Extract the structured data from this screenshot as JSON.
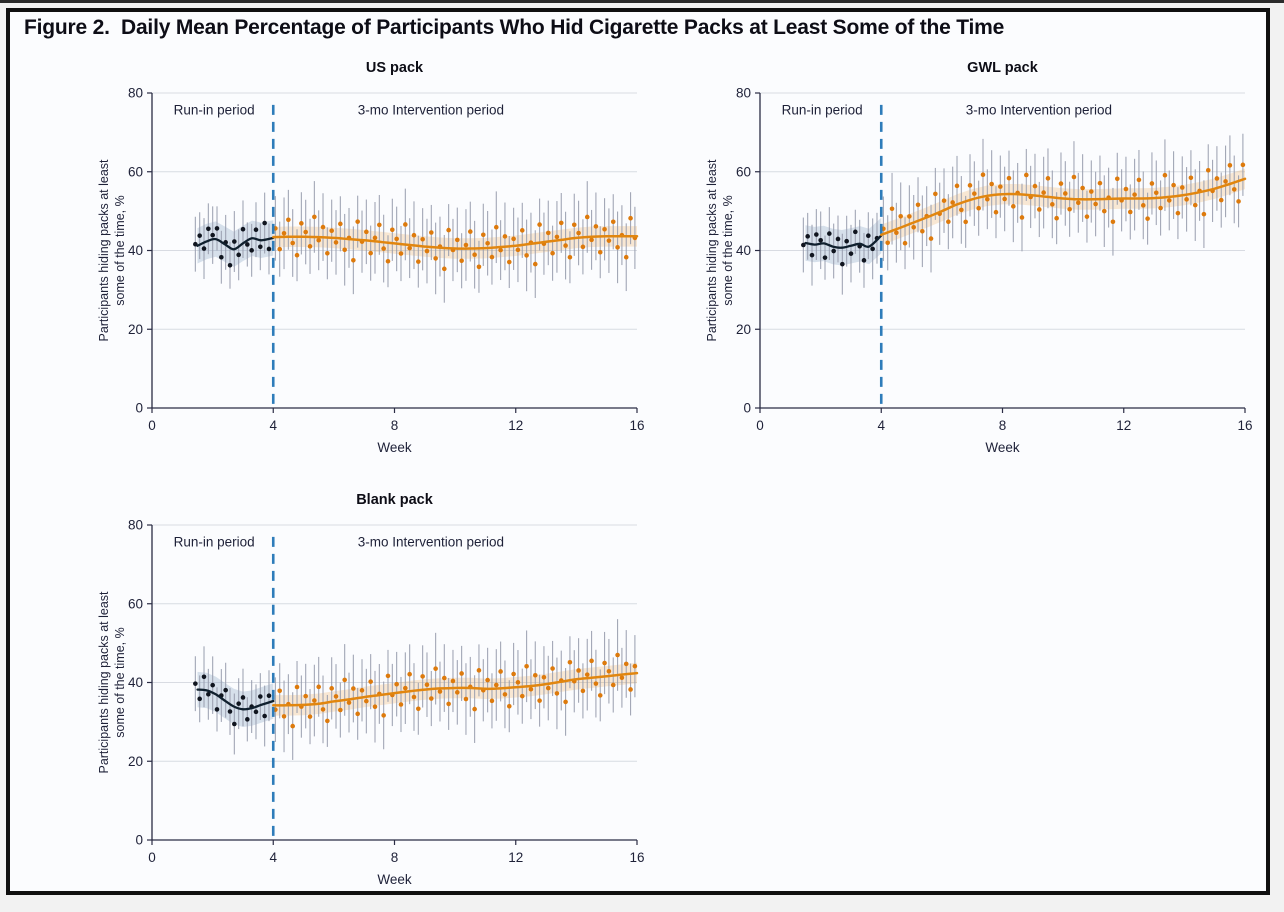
{
  "figure": {
    "title": "Figure 2.  Daily Mean Percentage of Participants Who Hid Cigarette Packs at Least Some of the Time"
  },
  "shared": {
    "xlabel": "Week",
    "ylabel_line1": "Participants hiding packs at least",
    "ylabel_line2": "some of the time, %",
    "runin_label": "Run-in period",
    "intervention_label": "3-mo Intervention period",
    "x_ticks": [
      0,
      4,
      8,
      12,
      16
    ],
    "y_ticks": [
      0,
      20,
      40,
      60,
      80
    ],
    "xlim": [
      0,
      16
    ],
    "ylim": [
      0,
      80
    ],
    "divider_week": 4,
    "grid_on": true,
    "scatter_offsets_cycle": [
      2.2,
      -3.1,
      0.9,
      4.3,
      -1.6,
      -4.7,
      3.4,
      1.2,
      -2.4,
      5.1,
      -0.8,
      2.6,
      -4.0,
      1.8,
      -1.1,
      3.7,
      -2.8,
      0.3,
      -5.3,
      4.6,
      -0.4
    ],
    "err_half_cycle": [
      8.2,
      7.0,
      9.1,
      7.6,
      8.6,
      6.6,
      7.9
    ]
  },
  "colors": {
    "page_background": "#f2f2f2",
    "figure_background": "#fbfcfe",
    "border": "#101010",
    "title_text": "#0d0d16",
    "text": "#1e2138",
    "grid": "#d8dbe2",
    "axis": "#2a2c44",
    "error_bar": "#989dae",
    "runin_dot": "#10151f",
    "runin_line": "#10202e",
    "runin_band": "rgba(120,150,185,0.28)",
    "intervention_dot": "#dd7a0c",
    "intervention_line": "#e1860f",
    "intervention_band": "rgba(238,160,60,0.22)",
    "divider": "#2e7cba"
  },
  "chart_data": [
    {
      "type": "scatter",
      "title": "US pack",
      "xlabel": "Week",
      "ylabel": "Participants hiding packs at least some of the time, %",
      "run_in_trend": {
        "x": [
          1.5,
          1.8,
          2.1,
          2.4,
          2.7,
          3.0,
          3.3,
          3.6,
          4.0
        ],
        "y": [
          41.2,
          42.3,
          42.9,
          41.6,
          40.3,
          41.8,
          43.1,
          42.6,
          43.2
        ]
      },
      "intervention_trend": {
        "x": [
          4,
          4.5,
          5,
          5.5,
          6,
          6.5,
          7,
          7.5,
          8,
          8.5,
          9,
          9.5,
          10,
          10.5,
          11,
          11.5,
          12,
          12.5,
          13,
          13.5,
          14,
          14.5,
          15,
          15.5,
          16
        ],
        "y": [
          43.4,
          43.5,
          43.5,
          43.4,
          43.2,
          42.9,
          42.6,
          42.2,
          41.8,
          41.4,
          41.0,
          40.7,
          40.5,
          40.5,
          40.6,
          40.9,
          41.2,
          41.7,
          42.2,
          42.7,
          43.2,
          43.5,
          43.6,
          43.6,
          43.6
        ]
      },
      "run_in_dots": {
        "x_start": 1.43,
        "x_step": 0.1429,
        "offsets": [
          0.4,
          2.3,
          -1.5,
          3.1,
          1.2,
          2.9,
          -3.8,
          0.6,
          -4.6,
          1.9,
          -2.2,
          3.6,
          -0.9,
          -3.0,
          2.4,
          -1.7,
          4.2,
          -2.6
        ],
        "err_scale": 0.85
      },
      "intervention_dots": {
        "x_start": 4.07,
        "x_step": 0.1429,
        "count": 84,
        "offset_phase": 0,
        "offset_scale": 1.0
      }
    },
    {
      "type": "scatter",
      "title": "GWL pack",
      "xlabel": "Week",
      "ylabel": "Participants hiding packs at least some of the time, %",
      "run_in_trend": {
        "x": [
          1.5,
          1.8,
          2.1,
          2.4,
          2.7,
          3.0,
          3.3,
          3.6,
          4.0
        ],
        "y": [
          41.9,
          41.5,
          41.8,
          41.0,
          40.7,
          41.2,
          41.7,
          41.0,
          43.8
        ]
      },
      "intervention_trend": {
        "x": [
          4,
          4.5,
          5,
          5.5,
          6,
          6.5,
          7,
          7.5,
          8,
          8.5,
          9,
          9.5,
          10,
          10.5,
          11,
          11.5,
          12,
          12.5,
          13,
          13.5,
          14,
          14.5,
          15,
          15.5,
          16
        ],
        "y": [
          44.0,
          45.4,
          46.9,
          48.4,
          50.0,
          51.7,
          53.0,
          53.9,
          54.3,
          54.3,
          54.0,
          53.6,
          53.2,
          53.0,
          53.0,
          53.1,
          53.2,
          53.2,
          53.3,
          53.6,
          54.1,
          54.8,
          55.7,
          56.9,
          58.2
        ]
      },
      "run_in_dots": {
        "x_start": 1.43,
        "x_step": 0.1429,
        "offsets": [
          -0.5,
          1.8,
          -2.8,
          2.5,
          0.9,
          -3.5,
          3.0,
          -1.1,
          2.1,
          -4.2,
          1.4,
          -2.0,
          3.3,
          -0.6,
          -3.9,
          2.7,
          -1.4,
          0.3
        ],
        "err_scale": 0.85
      },
      "intervention_dots": {
        "x_start": 4.07,
        "x_step": 0.1429,
        "count": 84,
        "offset_phase": 7,
        "offset_scale": 1.1
      }
    },
    {
      "type": "scatter",
      "title": "Blank pack",
      "xlabel": "Week",
      "ylabel": "Participants hiding packs at least some of the time, %",
      "run_in_trend": {
        "x": [
          1.5,
          1.8,
          2.1,
          2.4,
          2.7,
          3.0,
          3.3,
          3.6,
          4.0
        ],
        "y": [
          38.2,
          38.0,
          37.0,
          35.4,
          33.9,
          33.2,
          33.5,
          34.3,
          35.3
        ]
      },
      "intervention_trend": {
        "x": [
          4,
          4.5,
          5,
          5.5,
          6,
          6.5,
          7,
          7.5,
          8,
          8.5,
          9,
          9.5,
          10,
          10.5,
          11,
          11.5,
          12,
          12.5,
          13,
          13.5,
          14,
          14.5,
          15,
          15.5,
          16
        ],
        "y": [
          34.2,
          34.2,
          34.3,
          34.6,
          35.2,
          35.7,
          36.3,
          36.8,
          37.3,
          37.8,
          38.2,
          38.5,
          38.6,
          38.6,
          38.4,
          38.5,
          38.8,
          39.1,
          39.6,
          40.2,
          40.8,
          41.2,
          41.6,
          42.0,
          42.4
        ]
      },
      "run_in_dots": {
        "x_start": 1.43,
        "x_step": 0.1429,
        "offsets": [
          1.5,
          -2.3,
          3.4,
          -0.8,
          2.0,
          -3.6,
          0.7,
          2.8,
          -1.9,
          -4.4,
          1.1,
          3.0,
          -2.7,
          0.4,
          -1.3,
          2.2,
          -3.1,
          1.7
        ],
        "err_scale": 0.85
      },
      "intervention_dots": {
        "x_start": 4.07,
        "x_step": 0.1429,
        "count": 84,
        "offset_phase": 14,
        "offset_scale": 1.0
      }
    }
  ]
}
